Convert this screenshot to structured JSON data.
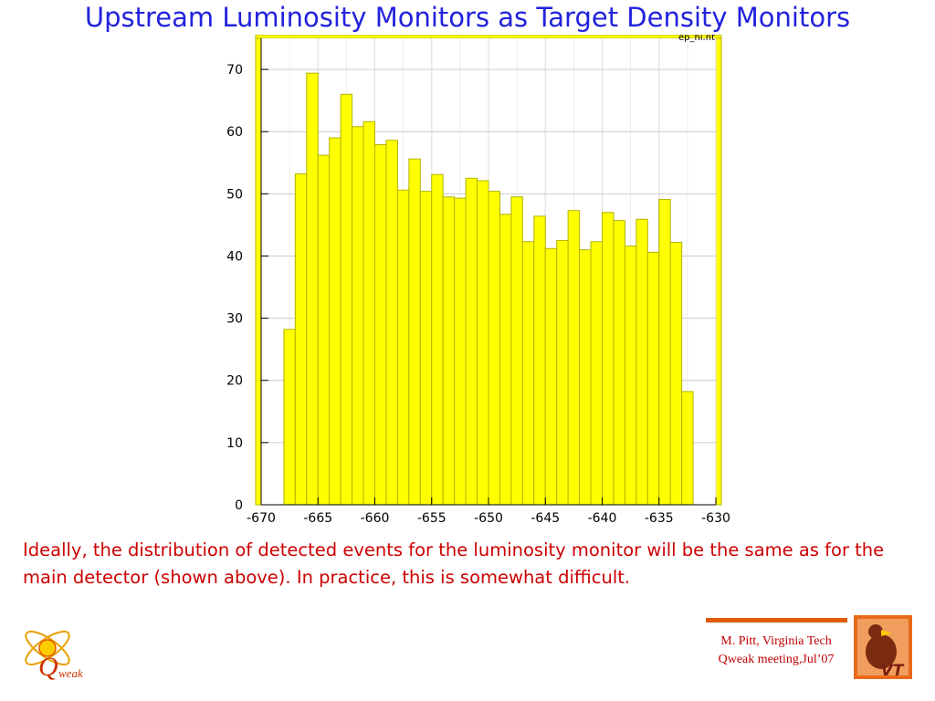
{
  "slide": {
    "title": "Upstream Luminosity Monitors as Target Density Monitors",
    "caption": "Ideally,  the distribution of detected events for the luminosity monitor will be the same as for the main detector (shown above).  In practice, this is somewhat difficult.",
    "credit_line1": "M. Pitt, Virginia Tech",
    "credit_line2": "Qweak meeting,Jul’07",
    "qweak_logo_text": "weak",
    "qweak_logo_letter": "Q",
    "vt_logo_text": "VT"
  },
  "colors": {
    "title": "#2222dd",
    "caption": "#cc0000",
    "bars": "#ffff00",
    "bar_edge": "#b3b300",
    "accent": "#e05a00"
  },
  "chart_data": {
    "type": "bar",
    "histogram_name": "ep_hi.nt",
    "title": "",
    "xlabel": "",
    "ylabel": "",
    "xlim": [
      -670,
      -630
    ],
    "ylim": [
      0,
      75
    ],
    "xticks": [
      -670,
      -665,
      -660,
      -655,
      -650,
      -645,
      -640,
      -635,
      -630
    ],
    "yticks": [
      0,
      10,
      20,
      30,
      40,
      50,
      60,
      70
    ],
    "grid": true,
    "bin_edges": [
      -668,
      -667,
      -666,
      -665,
      -664,
      -663,
      -662,
      -661,
      -660,
      -659,
      -658,
      -657,
      -656,
      -655,
      -654,
      -653,
      -652,
      -651,
      -650,
      -649,
      -648,
      -647,
      -646,
      -645,
      -644,
      -643,
      -642,
      -641,
      -640,
      -639,
      -638,
      -637,
      -636,
      -635,
      -634,
      -633,
      -632
    ],
    "values": [
      28.2,
      53.2,
      69.4,
      56.2,
      59.0,
      66.0,
      60.8,
      61.6,
      57.9,
      58.6,
      50.6,
      55.6,
      50.4,
      53.1,
      49.5,
      49.3,
      52.5,
      52.1,
      50.4,
      46.7,
      49.5,
      42.3,
      46.4,
      41.2,
      42.5,
      47.3,
      41.0,
      42.3,
      47.0,
      45.7,
      41.6,
      45.9,
      40.6,
      49.1,
      42.2,
      18.2
    ]
  }
}
